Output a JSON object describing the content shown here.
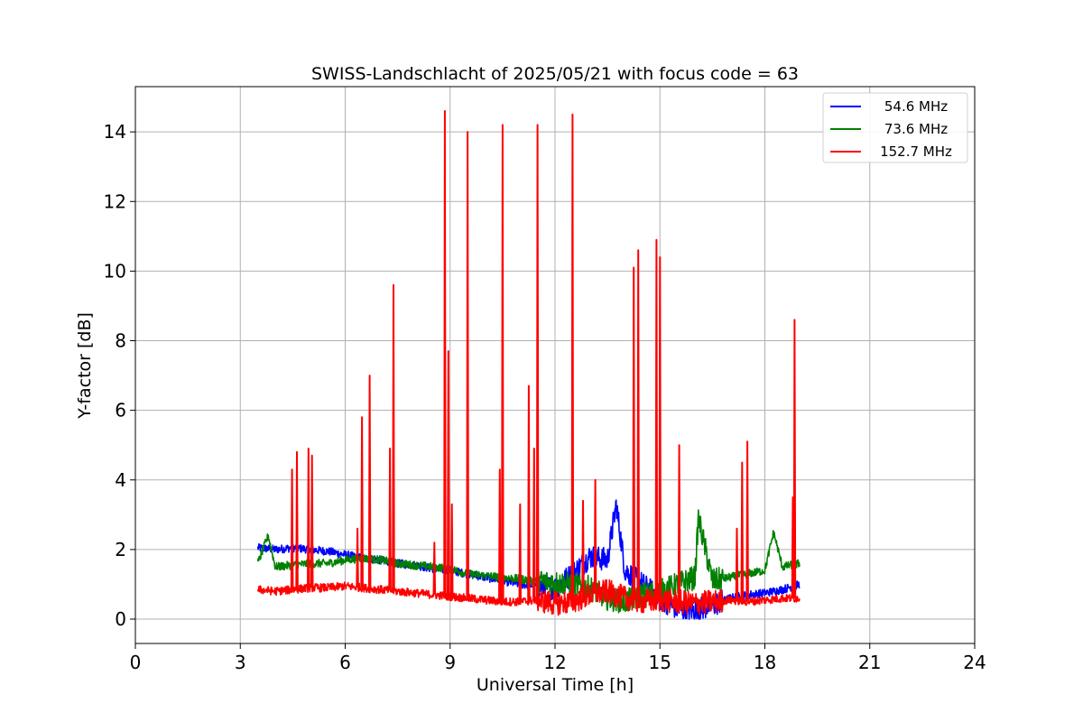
{
  "chart_data": {
    "type": "line",
    "title": "SWISS-Landschlacht of 2025/05/21 with focus code = 63",
    "xlabel": "Universal Time [h]",
    "ylabel": "Y-factor [dB]",
    "xlim": [
      0,
      24
    ],
    "ylim": [
      -0.7,
      15.3
    ],
    "xticks": [
      0,
      3,
      6,
      9,
      12,
      15,
      18,
      21,
      24
    ],
    "yticks": [
      0,
      2,
      4,
      6,
      8,
      10,
      12,
      14
    ],
    "grid": true,
    "legend_position": "top-right",
    "series": [
      {
        "name": "54.6 MHz",
        "color": "#0000ff",
        "points": [
          [
            3.5,
            2.05
          ],
          [
            4.0,
            2.0
          ],
          [
            4.5,
            2.05
          ],
          [
            5.0,
            2.0
          ],
          [
            5.5,
            1.95
          ],
          [
            6.0,
            1.85
          ],
          [
            6.5,
            1.75
          ],
          [
            7.0,
            1.7
          ],
          [
            7.5,
            1.6
          ],
          [
            8.0,
            1.55
          ],
          [
            8.5,
            1.45
          ],
          [
            9.0,
            1.4
          ],
          [
            9.5,
            1.3
          ],
          [
            10.0,
            1.2
          ],
          [
            10.5,
            1.1
          ],
          [
            11.0,
            1.0
          ],
          [
            11.5,
            0.95
          ],
          [
            12.0,
            0.9
          ],
          [
            12.5,
            1.3
          ],
          [
            13.0,
            1.8
          ],
          [
            13.5,
            1.7
          ],
          [
            13.75,
            3.3
          ],
          [
            14.0,
            1.4
          ],
          [
            14.5,
            1.0
          ],
          [
            15.0,
            0.6
          ],
          [
            15.5,
            0.3
          ],
          [
            16.0,
            0.25
          ],
          [
            16.5,
            0.4
          ],
          [
            17.0,
            0.6
          ],
          [
            17.5,
            0.7
          ],
          [
            18.0,
            0.75
          ],
          [
            18.5,
            0.85
          ],
          [
            19.0,
            1.0
          ]
        ]
      },
      {
        "name": "73.6 MHz",
        "color": "#008000",
        "points": [
          [
            3.5,
            1.6
          ],
          [
            3.8,
            2.4
          ],
          [
            4.0,
            1.5
          ],
          [
            4.5,
            1.55
          ],
          [
            5.0,
            1.6
          ],
          [
            5.5,
            1.6
          ],
          [
            6.0,
            1.7
          ],
          [
            6.5,
            1.75
          ],
          [
            7.0,
            1.7
          ],
          [
            7.5,
            1.6
          ],
          [
            8.0,
            1.55
          ],
          [
            8.5,
            1.5
          ],
          [
            9.0,
            1.45
          ],
          [
            9.5,
            1.3
          ],
          [
            10.0,
            1.25
          ],
          [
            10.5,
            1.2
          ],
          [
            11.0,
            1.15
          ],
          [
            11.5,
            1.1
          ],
          [
            12.0,
            1.05
          ],
          [
            12.5,
            1.0
          ],
          [
            13.0,
            0.9
          ],
          [
            13.5,
            0.6
          ],
          [
            14.0,
            0.5
          ],
          [
            14.5,
            0.7
          ],
          [
            15.0,
            0.8
          ],
          [
            15.5,
            1.0
          ],
          [
            16.0,
            1.2
          ],
          [
            16.1,
            2.9
          ],
          [
            16.5,
            1.1
          ],
          [
            17.0,
            1.2
          ],
          [
            17.5,
            1.3
          ],
          [
            18.0,
            1.4
          ],
          [
            18.25,
            2.5
          ],
          [
            18.5,
            1.5
          ],
          [
            19.0,
            1.6
          ]
        ]
      },
      {
        "name": "152.7 MHz",
        "color": "#ff0000",
        "points": [
          [
            3.5,
            0.85
          ],
          [
            4.0,
            0.8
          ],
          [
            4.5,
            0.85
          ],
          [
            5.0,
            0.9
          ],
          [
            5.5,
            0.9
          ],
          [
            6.0,
            0.95
          ],
          [
            6.5,
            0.9
          ],
          [
            7.0,
            0.85
          ],
          [
            7.5,
            0.8
          ],
          [
            8.0,
            0.75
          ],
          [
            8.5,
            0.7
          ],
          [
            9.0,
            0.65
          ],
          [
            9.5,
            0.6
          ],
          [
            10.0,
            0.55
          ],
          [
            10.5,
            0.5
          ],
          [
            11.0,
            0.5
          ],
          [
            11.5,
            0.55
          ],
          [
            12.0,
            0.45
          ],
          [
            12.5,
            0.5
          ],
          [
            13.0,
            0.7
          ],
          [
            13.5,
            0.8
          ],
          [
            14.0,
            0.6
          ],
          [
            14.5,
            0.5
          ],
          [
            15.0,
            0.55
          ],
          [
            15.5,
            0.5
          ],
          [
            16.0,
            0.45
          ],
          [
            16.5,
            0.5
          ],
          [
            17.0,
            0.55
          ],
          [
            17.5,
            0.5
          ],
          [
            18.0,
            0.55
          ],
          [
            18.5,
            0.6
          ],
          [
            19.0,
            0.6
          ]
        ],
        "spikes": [
          [
            4.48,
            4.3
          ],
          [
            4.62,
            4.8
          ],
          [
            4.95,
            4.9
          ],
          [
            5.05,
            4.7
          ],
          [
            6.35,
            2.6
          ],
          [
            6.48,
            5.8
          ],
          [
            6.7,
            7.0
          ],
          [
            7.28,
            4.9
          ],
          [
            7.38,
            9.6
          ],
          [
            8.55,
            2.2
          ],
          [
            8.85,
            14.6
          ],
          [
            8.95,
            7.7
          ],
          [
            9.05,
            3.3
          ],
          [
            9.5,
            14.0
          ],
          [
            10.42,
            4.3
          ],
          [
            10.5,
            14.2
          ],
          [
            11.0,
            3.3
          ],
          [
            11.25,
            6.7
          ],
          [
            11.4,
            4.9
          ],
          [
            11.5,
            14.2
          ],
          [
            12.5,
            14.5
          ],
          [
            12.8,
            3.4
          ],
          [
            13.15,
            4.0
          ],
          [
            14.25,
            10.1
          ],
          [
            14.38,
            10.6
          ],
          [
            14.9,
            10.9
          ],
          [
            15.0,
            10.4
          ],
          [
            15.55,
            5.0
          ],
          [
            17.2,
            2.6
          ],
          [
            17.35,
            4.5
          ],
          [
            17.5,
            5.1
          ],
          [
            18.8,
            3.5
          ],
          [
            18.85,
            8.6
          ]
        ]
      }
    ]
  }
}
